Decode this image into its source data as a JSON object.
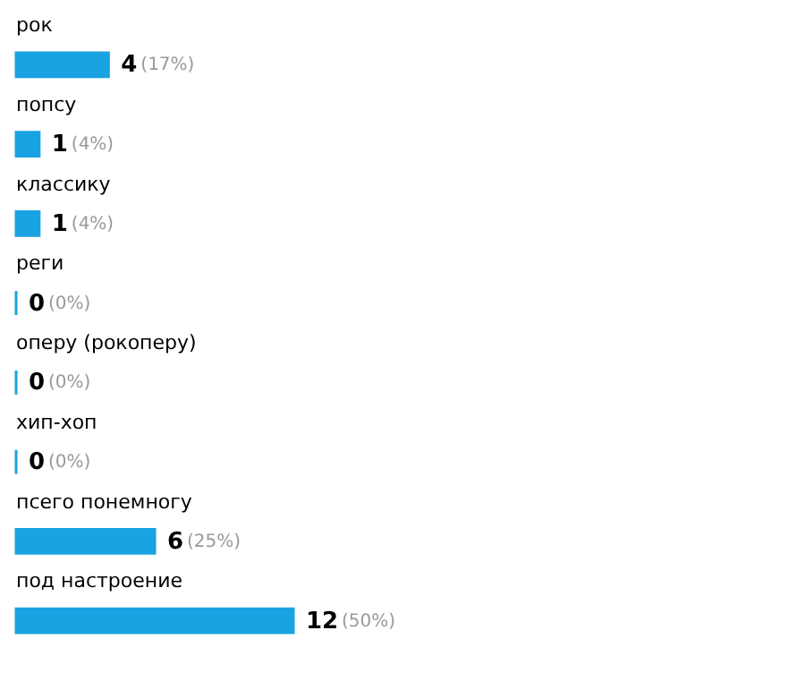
{
  "chart_data": {
    "type": "bar",
    "orientation": "horizontal",
    "categories": [
      "рок",
      "попсу",
      "классику",
      "реги",
      "оперу (рокоперу)",
      "хип-хоп",
      "псего понемногу",
      "под настроение"
    ],
    "values": [
      4,
      1,
      1,
      0,
      0,
      0,
      6,
      12
    ],
    "color": "#1aa3e2",
    "data_labels": true,
    "annotations": [
      {
        "text": "(17%)",
        "x": 4,
        "y": "рок"
      },
      {
        "text": "(4%)",
        "x": 1,
        "y": "попсу"
      },
      {
        "text": "(4%)",
        "x": 1,
        "y": "классику"
      },
      {
        "text": "(0%)",
        "x": 0,
        "y": "реги"
      },
      {
        "text": "(0%)",
        "x": 0,
        "y": "оперу (рокоперу)"
      },
      {
        "text": "(0%)",
        "x": 0,
        "y": "хип-хоп"
      },
      {
        "text": "(25%)",
        "x": 6,
        "y": "псего понемногу"
      },
      {
        "text": "(50%)",
        "x": 12,
        "y": "под настроение"
      }
    ]
  }
}
